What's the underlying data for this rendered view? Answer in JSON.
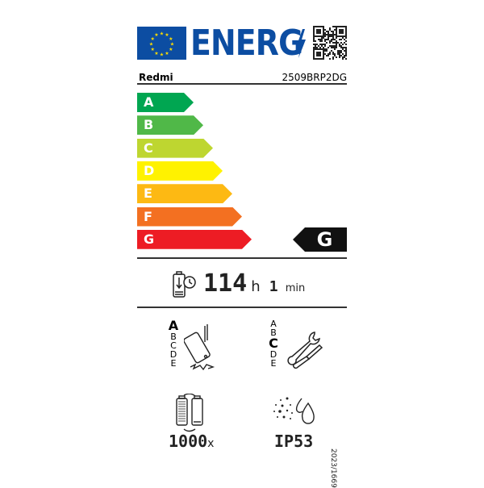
{
  "header": {
    "title": "ENERG",
    "flag_icon": "eu-flag-icon",
    "bolt_icon": "lightning-bolt-icon",
    "qr_icon": "qr-code-icon"
  },
  "supplier": {
    "brand": "Redmi",
    "model": "2509BRP2DG"
  },
  "energy_classes": [
    {
      "label": "A",
      "color": "#00a651"
    },
    {
      "label": "B",
      "color": "#50b848"
    },
    {
      "label": "C",
      "color": "#bed630"
    },
    {
      "label": "D",
      "color": "#fff200"
    },
    {
      "label": "E",
      "color": "#fdb913"
    },
    {
      "label": "F",
      "color": "#f37021"
    },
    {
      "label": "G",
      "color": "#ed1c24"
    }
  ],
  "rating": "G",
  "battery": {
    "hours": "114",
    "hours_unit": "h",
    "minutes": "1",
    "minutes_unit": "min"
  },
  "drop_resistance": {
    "scale": [
      "A",
      "B",
      "C",
      "D",
      "E"
    ],
    "selected": "A"
  },
  "repairability": {
    "scale": [
      "A",
      "B",
      "C",
      "D",
      "E"
    ],
    "selected": "C"
  },
  "cycles": {
    "value": "1000",
    "unit": "x"
  },
  "ip_rating": "IP53",
  "regulation": "2023/1669"
}
